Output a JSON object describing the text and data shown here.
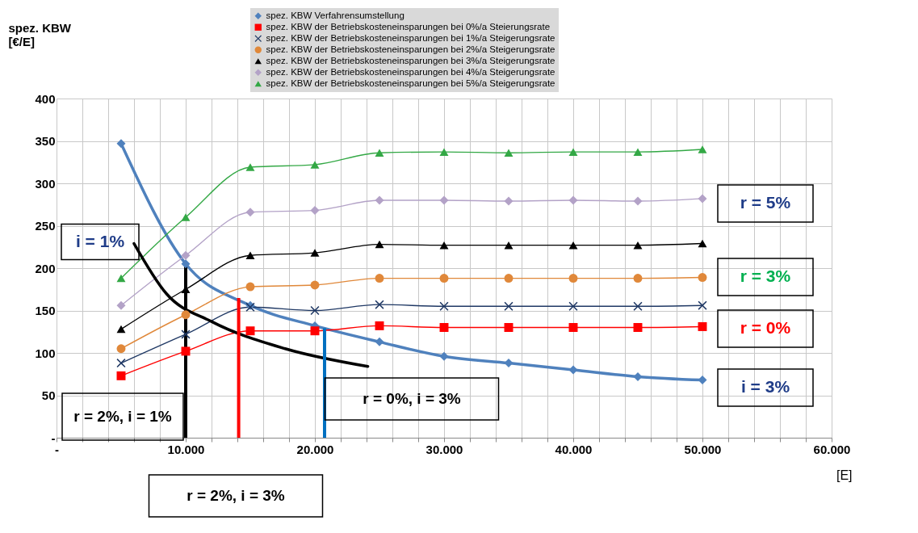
{
  "chart_data": {
    "type": "line",
    "ylabel": "spez. KBW [€/E]",
    "xlabel": "[E]",
    "x": [
      5000,
      10000,
      15000,
      20000,
      25000,
      30000,
      35000,
      40000,
      45000,
      50000
    ],
    "series": [
      {
        "name": "spez. KBW Verfahrensumstellung",
        "marker": "diamond",
        "color": "#4f81bd",
        "values": [
          347,
          205,
          156,
          132,
          113,
          96,
          88,
          80,
          72,
          68
        ]
      },
      {
        "name": "spez. KBW der Betriebskosteneinsparungen bei 0%/a Steierungsrate",
        "marker": "square",
        "color": "#ff0000",
        "values": [
          73,
          102,
          126,
          126,
          132,
          130,
          130,
          130,
          130,
          131
        ]
      },
      {
        "name": "spez. KBW der Betriebskosteneinsparungen bei 1%/a Steigerungsrate",
        "marker": "cross",
        "color": "#1f3864",
        "values": [
          88,
          122,
          154,
          150,
          157,
          155,
          155,
          155,
          155,
          156
        ]
      },
      {
        "name": "spez. KBW der Betriebskosteneinsparungen bei 2%/a Steigerungsrate",
        "marker": "circle",
        "color": "#e0883a",
        "values": [
          105,
          145,
          178,
          180,
          188,
          188,
          188,
          188,
          188,
          189
        ]
      },
      {
        "name": "spez. KBW der Betriebskosteneinsparungen bei 3%/a Steigerungsrate",
        "marker": "triangle",
        "color": "#000000",
        "values": [
          128,
          175,
          215,
          218,
          228,
          227,
          227,
          227,
          227,
          229
        ]
      },
      {
        "name": "spez. KBW der Betriebskosteneinsparungen bei 4%/a Steigerungsrate",
        "marker": "diamond",
        "color": "#b3a2c7",
        "values": [
          156,
          215,
          266,
          268,
          280,
          280,
          279,
          280,
          279,
          282
        ]
      },
      {
        "name": "spez. KBW der Betriebskosteneinsparungen bei 5%/a Steigerungsrate",
        "marker": "triangle",
        "color": "#33a845",
        "values": [
          188,
          260,
          319,
          322,
          336,
          337,
          336,
          337,
          337,
          340
        ]
      },
      {
        "name": "i = 1%",
        "marker": "none",
        "color": "#000000",
        "x": [
          6000,
          8500,
          12000,
          17700,
          24100
        ],
        "values": [
          229,
          170,
          137,
          105,
          84
        ]
      }
    ],
    "xlim": [
      0,
      60000
    ],
    "ylim": [
      0,
      400
    ],
    "xticks": [
      {
        "value": 0,
        "label": "-"
      },
      {
        "value": 2000,
        "label": null
      },
      {
        "value": 4000,
        "label": null
      },
      {
        "value": 6000,
        "label": null
      },
      {
        "value": 8000,
        "label": null
      },
      {
        "value": 10000,
        "label": "10.000"
      },
      {
        "value": 12000,
        "label": null
      },
      {
        "value": 14000,
        "label": null
      },
      {
        "value": 16000,
        "label": null
      },
      {
        "value": 18000,
        "label": null
      },
      {
        "value": 20000,
        "label": "20.000"
      },
      {
        "value": 22000,
        "label": null
      },
      {
        "value": 24000,
        "label": null
      },
      {
        "value": 26000,
        "label": null
      },
      {
        "value": 28000,
        "label": null
      },
      {
        "value": 30000,
        "label": "30.000"
      },
      {
        "value": 32000,
        "label": null
      },
      {
        "value": 34000,
        "label": null
      },
      {
        "value": 36000,
        "label": null
      },
      {
        "value": 38000,
        "label": null
      },
      {
        "value": 40000,
        "label": "40.000"
      },
      {
        "value": 42000,
        "label": null
      },
      {
        "value": 44000,
        "label": null
      },
      {
        "value": 46000,
        "label": null
      },
      {
        "value": 48000,
        "label": null
      },
      {
        "value": 50000,
        "label": "50.000"
      },
      {
        "value": 52000,
        "label": null
      },
      {
        "value": 54000,
        "label": null
      },
      {
        "value": 56000,
        "label": null
      },
      {
        "value": 58000,
        "label": null
      },
      {
        "value": 60000,
        "label": "60.000"
      }
    ],
    "yticks": [
      {
        "value": 0,
        "label": "-"
      },
      50,
      100,
      150,
      200,
      250,
      300,
      350,
      400
    ],
    "grid": true,
    "legend": "top",
    "ref_lines": [
      {
        "axis": "x",
        "value": 10000,
        "color": "#000000"
      },
      {
        "axis": "x",
        "value": 14100,
        "color": "#ff0000"
      },
      {
        "axis": "x",
        "value": 20750,
        "color": "#0070c0"
      }
    ],
    "annotations": [
      "r = 5%",
      "r = 3%",
      "r = 0%",
      "i = 3%",
      "r = 2%, i = 1%",
      "r = 0%, i = 3%",
      "r = 2%, i = 3%"
    ]
  }
}
